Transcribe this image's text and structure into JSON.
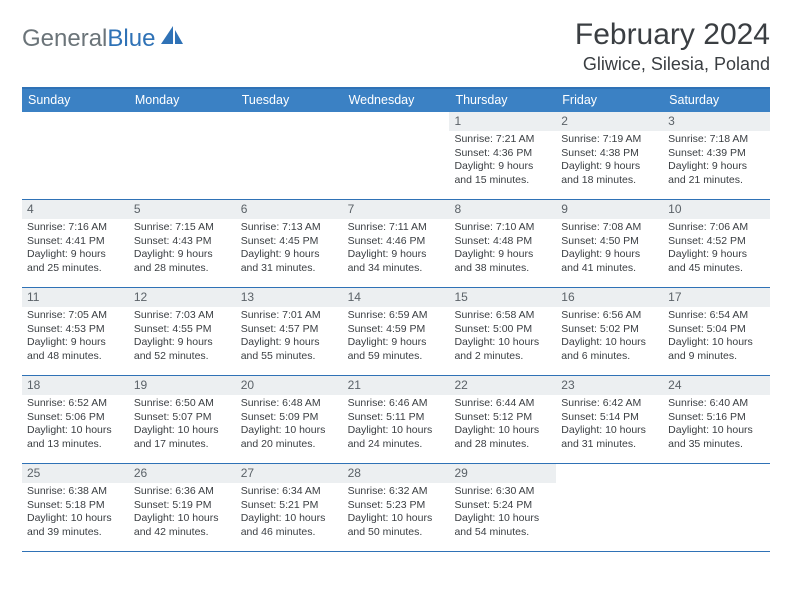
{
  "logo": {
    "text1": "General",
    "text2": "Blue"
  },
  "title": "February 2024",
  "location": "Gliwice, Silesia, Poland",
  "colors": {
    "header_bg": "#3b81c4",
    "border": "#2f72b6",
    "daynum_bg": "#eceff1",
    "text": "#3a3e42",
    "logo_gray": "#6b7479",
    "logo_blue": "#2f72b6"
  },
  "fonts": {
    "title_size": 30,
    "location_size": 18,
    "dow_size": 12.5,
    "body_size": 10.5,
    "daynum_size": 12
  },
  "days_of_week": [
    "Sunday",
    "Monday",
    "Tuesday",
    "Wednesday",
    "Thursday",
    "Friday",
    "Saturday"
  ],
  "weeks": [
    [
      {
        "n": "",
        "sr": "",
        "ss": "",
        "dl": ""
      },
      {
        "n": "",
        "sr": "",
        "ss": "",
        "dl": ""
      },
      {
        "n": "",
        "sr": "",
        "ss": "",
        "dl": ""
      },
      {
        "n": "",
        "sr": "",
        "ss": "",
        "dl": ""
      },
      {
        "n": "1",
        "sr": "Sunrise: 7:21 AM",
        "ss": "Sunset: 4:36 PM",
        "dl": "Daylight: 9 hours and 15 minutes."
      },
      {
        "n": "2",
        "sr": "Sunrise: 7:19 AM",
        "ss": "Sunset: 4:38 PM",
        "dl": "Daylight: 9 hours and 18 minutes."
      },
      {
        "n": "3",
        "sr": "Sunrise: 7:18 AM",
        "ss": "Sunset: 4:39 PM",
        "dl": "Daylight: 9 hours and 21 minutes."
      }
    ],
    [
      {
        "n": "4",
        "sr": "Sunrise: 7:16 AM",
        "ss": "Sunset: 4:41 PM",
        "dl": "Daylight: 9 hours and 25 minutes."
      },
      {
        "n": "5",
        "sr": "Sunrise: 7:15 AM",
        "ss": "Sunset: 4:43 PM",
        "dl": "Daylight: 9 hours and 28 minutes."
      },
      {
        "n": "6",
        "sr": "Sunrise: 7:13 AM",
        "ss": "Sunset: 4:45 PM",
        "dl": "Daylight: 9 hours and 31 minutes."
      },
      {
        "n": "7",
        "sr": "Sunrise: 7:11 AM",
        "ss": "Sunset: 4:46 PM",
        "dl": "Daylight: 9 hours and 34 minutes."
      },
      {
        "n": "8",
        "sr": "Sunrise: 7:10 AM",
        "ss": "Sunset: 4:48 PM",
        "dl": "Daylight: 9 hours and 38 minutes."
      },
      {
        "n": "9",
        "sr": "Sunrise: 7:08 AM",
        "ss": "Sunset: 4:50 PM",
        "dl": "Daylight: 9 hours and 41 minutes."
      },
      {
        "n": "10",
        "sr": "Sunrise: 7:06 AM",
        "ss": "Sunset: 4:52 PM",
        "dl": "Daylight: 9 hours and 45 minutes."
      }
    ],
    [
      {
        "n": "11",
        "sr": "Sunrise: 7:05 AM",
        "ss": "Sunset: 4:53 PM",
        "dl": "Daylight: 9 hours and 48 minutes."
      },
      {
        "n": "12",
        "sr": "Sunrise: 7:03 AM",
        "ss": "Sunset: 4:55 PM",
        "dl": "Daylight: 9 hours and 52 minutes."
      },
      {
        "n": "13",
        "sr": "Sunrise: 7:01 AM",
        "ss": "Sunset: 4:57 PM",
        "dl": "Daylight: 9 hours and 55 minutes."
      },
      {
        "n": "14",
        "sr": "Sunrise: 6:59 AM",
        "ss": "Sunset: 4:59 PM",
        "dl": "Daylight: 9 hours and 59 minutes."
      },
      {
        "n": "15",
        "sr": "Sunrise: 6:58 AM",
        "ss": "Sunset: 5:00 PM",
        "dl": "Daylight: 10 hours and 2 minutes."
      },
      {
        "n": "16",
        "sr": "Sunrise: 6:56 AM",
        "ss": "Sunset: 5:02 PM",
        "dl": "Daylight: 10 hours and 6 minutes."
      },
      {
        "n": "17",
        "sr": "Sunrise: 6:54 AM",
        "ss": "Sunset: 5:04 PM",
        "dl": "Daylight: 10 hours and 9 minutes."
      }
    ],
    [
      {
        "n": "18",
        "sr": "Sunrise: 6:52 AM",
        "ss": "Sunset: 5:06 PM",
        "dl": "Daylight: 10 hours and 13 minutes."
      },
      {
        "n": "19",
        "sr": "Sunrise: 6:50 AM",
        "ss": "Sunset: 5:07 PM",
        "dl": "Daylight: 10 hours and 17 minutes."
      },
      {
        "n": "20",
        "sr": "Sunrise: 6:48 AM",
        "ss": "Sunset: 5:09 PM",
        "dl": "Daylight: 10 hours and 20 minutes."
      },
      {
        "n": "21",
        "sr": "Sunrise: 6:46 AM",
        "ss": "Sunset: 5:11 PM",
        "dl": "Daylight: 10 hours and 24 minutes."
      },
      {
        "n": "22",
        "sr": "Sunrise: 6:44 AM",
        "ss": "Sunset: 5:12 PM",
        "dl": "Daylight: 10 hours and 28 minutes."
      },
      {
        "n": "23",
        "sr": "Sunrise: 6:42 AM",
        "ss": "Sunset: 5:14 PM",
        "dl": "Daylight: 10 hours and 31 minutes."
      },
      {
        "n": "24",
        "sr": "Sunrise: 6:40 AM",
        "ss": "Sunset: 5:16 PM",
        "dl": "Daylight: 10 hours and 35 minutes."
      }
    ],
    [
      {
        "n": "25",
        "sr": "Sunrise: 6:38 AM",
        "ss": "Sunset: 5:18 PM",
        "dl": "Daylight: 10 hours and 39 minutes."
      },
      {
        "n": "26",
        "sr": "Sunrise: 6:36 AM",
        "ss": "Sunset: 5:19 PM",
        "dl": "Daylight: 10 hours and 42 minutes."
      },
      {
        "n": "27",
        "sr": "Sunrise: 6:34 AM",
        "ss": "Sunset: 5:21 PM",
        "dl": "Daylight: 10 hours and 46 minutes."
      },
      {
        "n": "28",
        "sr": "Sunrise: 6:32 AM",
        "ss": "Sunset: 5:23 PM",
        "dl": "Daylight: 10 hours and 50 minutes."
      },
      {
        "n": "29",
        "sr": "Sunrise: 6:30 AM",
        "ss": "Sunset: 5:24 PM",
        "dl": "Daylight: 10 hours and 54 minutes."
      },
      {
        "n": "",
        "sr": "",
        "ss": "",
        "dl": ""
      },
      {
        "n": "",
        "sr": "",
        "ss": "",
        "dl": ""
      }
    ]
  ]
}
